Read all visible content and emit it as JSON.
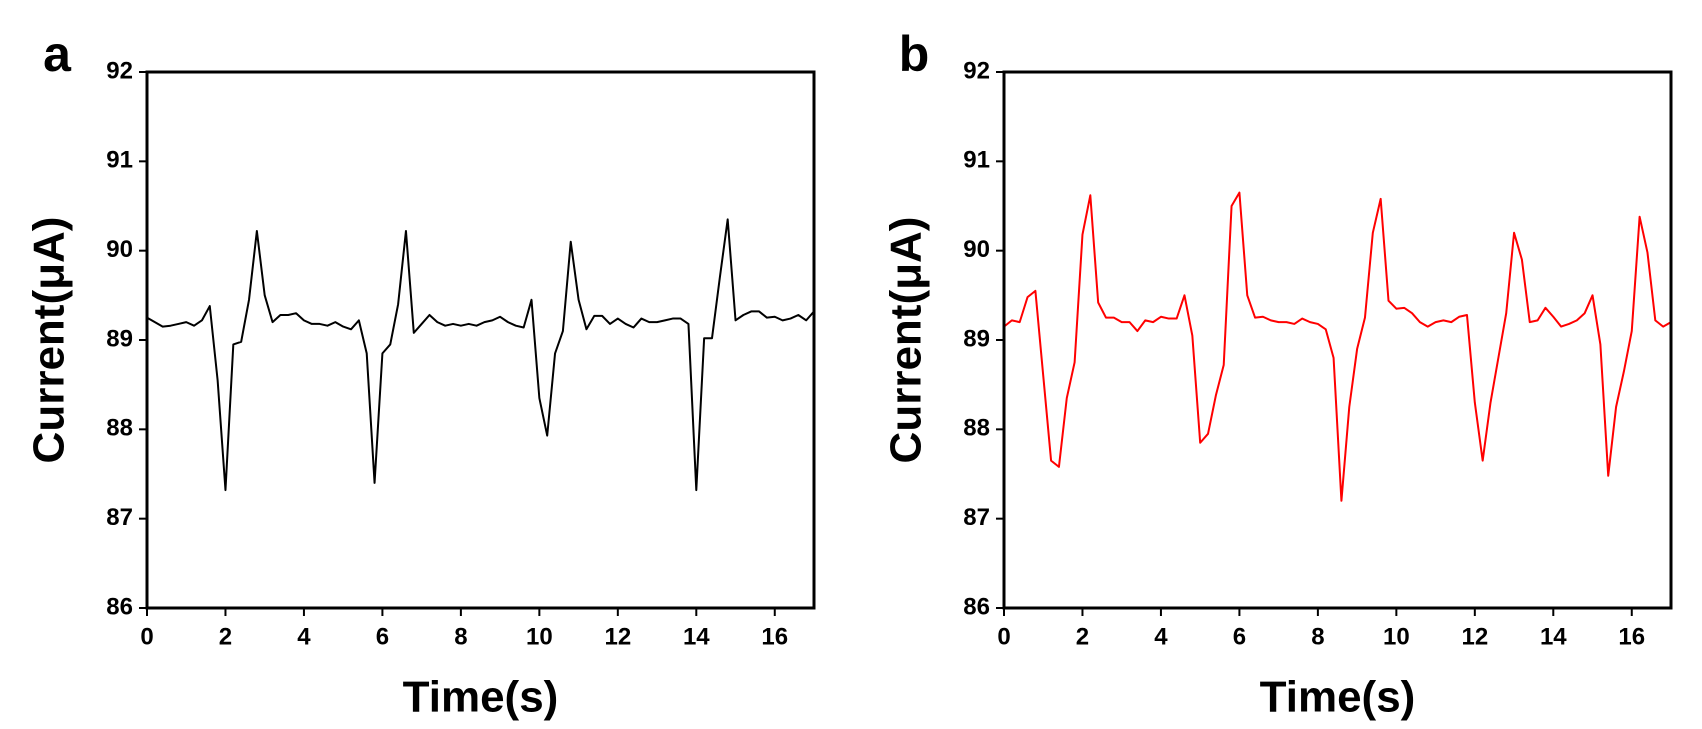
{
  "chart_data": [
    {
      "type": "line",
      "panel_label": "a",
      "x_label": "Time(s)",
      "y_label": "Current(μA)",
      "x": [
        0,
        0.2,
        0.4,
        0.6,
        0.8,
        1,
        1.2,
        1.4,
        1.6,
        1.8,
        2,
        2.2,
        2.4,
        2.6,
        2.8,
        3,
        3.2,
        3.4,
        3.6,
        3.8,
        4,
        4.2,
        4.4,
        4.6,
        4.8,
        5,
        5.2,
        5.4,
        5.6,
        5.8,
        6,
        6.2,
        6.4,
        6.6,
        6.8,
        7,
        7.2,
        7.4,
        7.6,
        7.8,
        8,
        8.2,
        8.4,
        8.6,
        8.8,
        9,
        9.2,
        9.4,
        9.6,
        9.8,
        10,
        10.2,
        10.4,
        10.6,
        10.8,
        11,
        11.2,
        11.4,
        11.6,
        11.8,
        12,
        12.2,
        12.4,
        12.6,
        12.8,
        13,
        13.2,
        13.4,
        13.6,
        13.8,
        14,
        14.2,
        14.4,
        14.6,
        14.8,
        15,
        15.2,
        15.4,
        15.6,
        15.8,
        16,
        16.2,
        16.4,
        16.6,
        16.8,
        17
      ],
      "series": [
        {
          "color": "#000000",
          "values": [
            89.25,
            89.2,
            89.15,
            89.16,
            89.18,
            89.2,
            89.16,
            89.22,
            89.38,
            88.55,
            87.32,
            88.95,
            88.98,
            89.45,
            90.22,
            89.5,
            89.2,
            89.28,
            89.28,
            89.3,
            89.22,
            89.18,
            89.18,
            89.16,
            89.2,
            89.15,
            89.12,
            89.22,
            88.85,
            87.4,
            88.85,
            88.95,
            89.4,
            90.22,
            89.08,
            89.18,
            89.28,
            89.2,
            89.16,
            89.18,
            89.16,
            89.18,
            89.16,
            89.2,
            89.22,
            89.26,
            89.2,
            89.16,
            89.14,
            89.45,
            88.35,
            87.93,
            88.85,
            89.1,
            90.1,
            89.45,
            89.12,
            89.27,
            89.27,
            89.18,
            89.24,
            89.18,
            89.14,
            89.24,
            89.2,
            89.2,
            89.22,
            89.24,
            89.24,
            89.18,
            87.32,
            89.02,
            89.02,
            89.7,
            90.35,
            89.22,
            89.28,
            89.32,
            89.32,
            89.25,
            89.26,
            89.22,
            89.24,
            89.28,
            89.22,
            89.32
          ]
        }
      ],
      "xlim": [
        0,
        17
      ],
      "xticks": [
        0,
        2,
        4,
        6,
        8,
        10,
        12,
        14,
        16
      ],
      "ylim": [
        86,
        92
      ],
      "yticks": [
        86,
        87,
        88,
        89,
        90,
        91,
        92
      ]
    },
    {
      "type": "line",
      "panel_label": "b",
      "x_label": "Time(s)",
      "y_label": "Current(μA)",
      "x": [
        0,
        0.2,
        0.4,
        0.6,
        0.8,
        1,
        1.2,
        1.4,
        1.6,
        1.8,
        2,
        2.2,
        2.4,
        2.6,
        2.8,
        3,
        3.2,
        3.4,
        3.6,
        3.8,
        4,
        4.2,
        4.4,
        4.6,
        4.8,
        5,
        5.2,
        5.4,
        5.6,
        5.8,
        6,
        6.2,
        6.4,
        6.6,
        6.8,
        7,
        7.2,
        7.4,
        7.6,
        7.8,
        8,
        8.2,
        8.4,
        8.6,
        8.8,
        9,
        9.2,
        9.4,
        9.6,
        9.8,
        10,
        10.2,
        10.4,
        10.6,
        10.8,
        11,
        11.2,
        11.4,
        11.6,
        11.8,
        12,
        12.2,
        12.4,
        12.6,
        12.8,
        13,
        13.2,
        13.4,
        13.6,
        13.8,
        14,
        14.2,
        14.4,
        14.6,
        14.8,
        15,
        15.2,
        15.4,
        15.6,
        15.8,
        16,
        16.2,
        16.4,
        16.6,
        16.8,
        17
      ],
      "series": [
        {
          "color": "#ff0000",
          "values": [
            89.15,
            89.22,
            89.2,
            89.48,
            89.55,
            88.6,
            87.65,
            87.58,
            88.35,
            88.75,
            90.18,
            90.62,
            89.42,
            89.25,
            89.25,
            89.2,
            89.2,
            89.1,
            89.22,
            89.2,
            89.26,
            89.24,
            89.24,
            89.5,
            89.05,
            87.85,
            87.95,
            88.38,
            88.72,
            90.5,
            90.65,
            89.5,
            89.25,
            89.26,
            89.22,
            89.2,
            89.2,
            89.18,
            89.24,
            89.2,
            89.18,
            89.12,
            88.8,
            87.2,
            88.25,
            88.9,
            89.25,
            90.2,
            90.58,
            89.44,
            89.35,
            89.36,
            89.3,
            89.2,
            89.15,
            89.2,
            89.22,
            89.2,
            89.26,
            89.28,
            88.3,
            87.65,
            88.3,
            88.8,
            89.3,
            90.2,
            89.9,
            89.2,
            89.22,
            89.36,
            89.26,
            89.15,
            89.18,
            89.22,
            89.3,
            89.5,
            88.95,
            87.48,
            88.25,
            88.65,
            89.1,
            90.38,
            89.98,
            89.22,
            89.15,
            89.2
          ]
        }
      ],
      "xlim": [
        0,
        17
      ],
      "xticks": [
        0,
        2,
        4,
        6,
        8,
        10,
        12,
        14,
        16
      ],
      "ylim": [
        86,
        92
      ],
      "yticks": [
        86,
        87,
        88,
        89,
        90,
        91,
        92
      ]
    }
  ]
}
